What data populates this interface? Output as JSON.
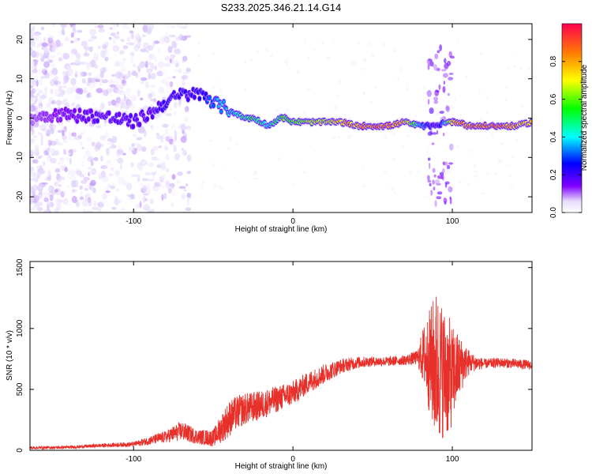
{
  "title": "S233.2025.346.21.14.G14",
  "chart_data": [
    {
      "type": "heatmap",
      "xlabel": "Height of straight line (km)",
      "ylabel": "Frequency (Hz)",
      "xlim": [
        -165,
        150
      ],
      "ylim": [
        -24,
        24
      ],
      "xticks": [
        "-100",
        "0",
        "100"
      ],
      "yticks": [
        "-20",
        "-10",
        "0",
        "10",
        "20"
      ],
      "colorbar": {
        "label": "Normalized spectral amplitude",
        "range": [
          0,
          1
        ],
        "ticks": [
          "0.0",
          "0.2",
          "0.4",
          "0.6",
          "0.8"
        ],
        "colormap": [
          "#ffffff",
          "#d8c8f8",
          "#8000ff",
          "#0000ff",
          "#00ffff",
          "#00ff00",
          "#ffff00",
          "#ff8000",
          "#ff0040"
        ]
      },
      "ridge": {
        "x": [
          -165,
          -150,
          -120,
          -100,
          -90,
          -80,
          -70,
          -62,
          -55,
          -50,
          -45,
          -40,
          -35,
          -30,
          -25,
          -20,
          -15,
          -12,
          -8,
          -5,
          0,
          10,
          20,
          30,
          40,
          50,
          60,
          70,
          80,
          85,
          90,
          95,
          100,
          105,
          110,
          120,
          130,
          140,
          150
        ],
        "freq": [
          0,
          1,
          0.5,
          -1,
          1,
          4,
          6,
          6,
          6,
          4,
          3,
          2,
          1,
          0,
          0,
          -1,
          -2,
          -1,
          0,
          0,
          -1,
          -1,
          -1,
          -1,
          -2,
          -2,
          -2,
          -1,
          -2,
          -2,
          -2,
          -1,
          -1,
          -1,
          -2,
          -2,
          -2,
          -2,
          -1
        ],
        "amplitude": [
          0.2,
          0.25,
          0.3,
          0.3,
          0.3,
          0.35,
          0.35,
          0.35,
          0.4,
          0.45,
          0.5,
          0.5,
          0.55,
          0.6,
          0.65,
          0.6,
          0.5,
          0.6,
          0.65,
          0.7,
          0.7,
          0.75,
          0.8,
          0.85,
          0.9,
          0.95,
          0.95,
          0.85,
          0.5,
          0.4,
          0.3,
          0.5,
          0.85,
          0.9,
          0.95,
          0.95,
          0.95,
          0.9,
          0.85
        ]
      }
    },
    {
      "type": "line",
      "xlabel": "Height of straight line (km)",
      "ylabel": "SNR (10 * v/v)",
      "xlim": [
        -165,
        150
      ],
      "ylim": [
        0,
        1550
      ],
      "xticks": [
        "-100",
        "0",
        "100"
      ],
      "yticks": [
        "0",
        "500",
        "1000",
        "1500"
      ],
      "series_color": "#e8302a",
      "envelope": {
        "x": [
          -165,
          -140,
          -120,
          -100,
          -90,
          -80,
          -70,
          -60,
          -50,
          -45,
          -40,
          -35,
          -30,
          -20,
          -10,
          0,
          10,
          20,
          30,
          40,
          50,
          60,
          70,
          78,
          82,
          86,
          90,
          94,
          98,
          100,
          104,
          108,
          112,
          120,
          130,
          140,
          150
        ],
        "mean": [
          20,
          25,
          40,
          50,
          80,
          110,
          160,
          110,
          100,
          180,
          260,
          310,
          340,
          370,
          420,
          470,
          560,
          630,
          690,
          720,
          730,
          730,
          740,
          760,
          780,
          720,
          680,
          650,
          600,
          620,
          680,
          720,
          720,
          710,
          720,
          710,
          700
        ],
        "spread": [
          12,
          12,
          15,
          20,
          35,
          50,
          80,
          60,
          70,
          120,
          150,
          140,
          130,
          120,
          110,
          100,
          90,
          80,
          60,
          50,
          40,
          40,
          40,
          60,
          250,
          450,
          650,
          550,
          500,
          400,
          280,
          150,
          80,
          40,
          40,
          40,
          40
        ]
      }
    }
  ]
}
